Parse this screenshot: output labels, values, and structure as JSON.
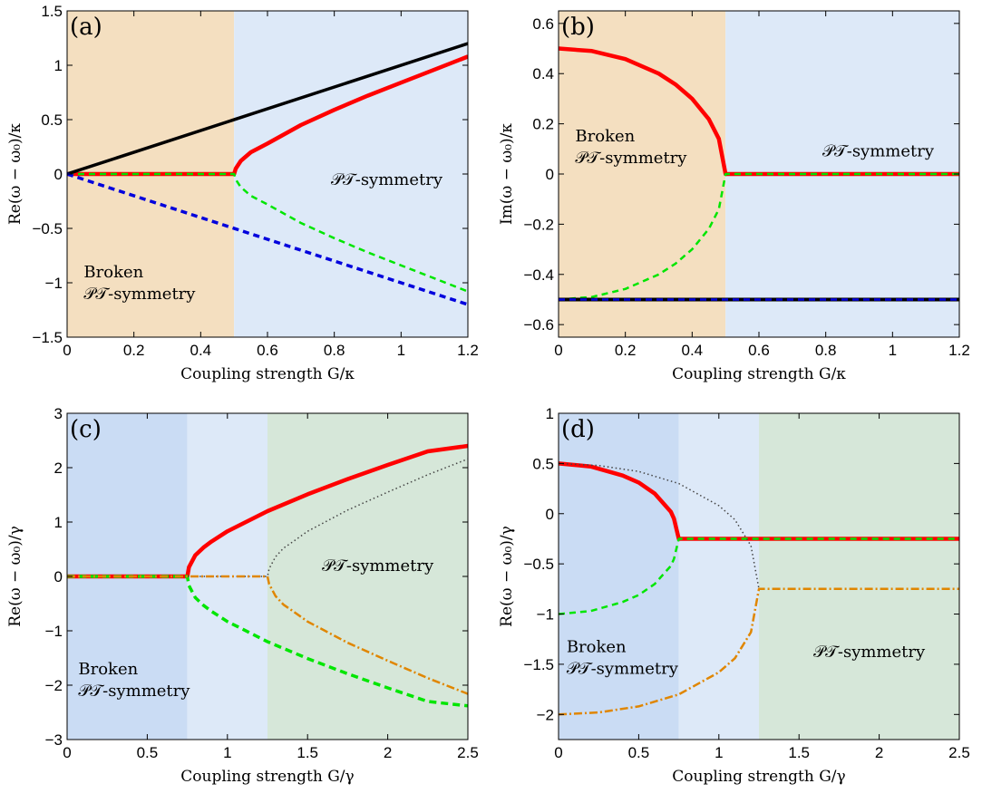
{
  "colors": {
    "tan": "#f4dfc0",
    "lightblue": "#dde9f8",
    "midblue": "#cadcf4",
    "green": "#d6e7d9",
    "red": "#ff0000",
    "green_line": "#00e600",
    "blue_line": "#0000dd",
    "black": "#000000",
    "orange": "#e08600",
    "dotted": "#444444"
  },
  "chart_data": [
    {
      "id": "a",
      "type": "line",
      "panel_label": "(a)",
      "xlabel": "Coupling strength G/κ",
      "ylabel": "Re(ω − ω₀)/κ",
      "xlim": [
        0,
        1.2
      ],
      "ylim": [
        -1.5,
        1.5
      ],
      "xticks": [
        0,
        0.2,
        0.4,
        0.6,
        0.8,
        1,
        1.2
      ],
      "xtick_labels": [
        "0",
        "0.2",
        "0.4",
        "0.6",
        "0.8",
        "1",
        "1.2"
      ],
      "yticks": [
        -1.5,
        -1,
        -0.5,
        0,
        0.5,
        1,
        1.5
      ],
      "ytick_labels": [
        "−1.5",
        "−1",
        "−0.5",
        "0",
        "0.5",
        "1",
        "1.5"
      ],
      "regions": [
        {
          "x0": 0,
          "x1": 0.5,
          "color": "tan"
        },
        {
          "x0": 0.5,
          "x1": 1.2,
          "color": "lightblue"
        }
      ],
      "annotations": [
        {
          "lines": [
            "Broken",
            "𝒫𝒯-symmetry"
          ],
          "x": 0.05,
          "y": -0.95
        },
        {
          "lines": [
            "𝒫𝒯-symmetry"
          ],
          "x": 0.79,
          "y": -0.1
        }
      ],
      "series": [
        {
          "x": [
            0,
            0.5,
            0.505,
            0.52,
            0.55,
            0.6,
            0.7,
            0.8,
            0.9,
            1.0,
            1.1,
            1.2
          ],
          "y": [
            0,
            0,
            0.05,
            0.12,
            0.2,
            0.28,
            0.45,
            0.59,
            0.72,
            0.84,
            0.96,
            1.08
          ],
          "color": "red",
          "width": 4.5,
          "dash": ""
        },
        {
          "x": [
            0,
            0.5,
            0.505,
            0.52,
            0.55,
            0.6,
            0.7,
            0.8,
            0.9,
            1.0,
            1.1,
            1.2
          ],
          "y": [
            0,
            0,
            -0.05,
            -0.12,
            -0.2,
            -0.28,
            -0.45,
            -0.59,
            -0.72,
            -0.84,
            -0.96,
            -1.08
          ],
          "color": "green_line",
          "width": 2.5,
          "dash": "7 5"
        },
        {
          "x": [
            0,
            1.2
          ],
          "y": [
            0,
            1.2
          ],
          "color": "black",
          "width": 3.5,
          "dash": ""
        },
        {
          "x": [
            0,
            1.2
          ],
          "y": [
            0,
            -1.2
          ],
          "color": "blue_line",
          "width": 3.5,
          "dash": "7 5"
        }
      ]
    },
    {
      "id": "b",
      "type": "line",
      "panel_label": "(b)",
      "xlabel": "Coupling strength G/κ",
      "ylabel": "Im(ω − ω₀)/κ",
      "xlim": [
        0,
        1.2
      ],
      "ylim": [
        -0.65,
        0.65
      ],
      "xticks": [
        0,
        0.2,
        0.4,
        0.6,
        0.8,
        1,
        1.2
      ],
      "xtick_labels": [
        "0",
        "0.2",
        "0.4",
        "0.6",
        "0.8",
        "1",
        "1.2"
      ],
      "yticks": [
        -0.6,
        -0.4,
        -0.2,
        0,
        0.2,
        0.4,
        0.6
      ],
      "ytick_labels": [
        "−0.6",
        "−0.4",
        "−0.2",
        "0",
        "0.2",
        "0.4",
        "0.6"
      ],
      "regions": [
        {
          "x0": 0,
          "x1": 0.5,
          "color": "tan"
        },
        {
          "x0": 0.5,
          "x1": 1.2,
          "color": "lightblue"
        }
      ],
      "annotations": [
        {
          "lines": [
            "Broken",
            "𝒫𝒯-symmetry"
          ],
          "x": 0.05,
          "y": 0.13
        },
        {
          "lines": [
            "𝒫𝒯-symmetry"
          ],
          "x": 0.79,
          "y": 0.07
        }
      ],
      "series": [
        {
          "x": [
            0,
            0.1,
            0.2,
            0.3,
            0.35,
            0.4,
            0.45,
            0.48,
            0.5,
            1.2
          ],
          "y": [
            0.5,
            0.49,
            0.458,
            0.4,
            0.357,
            0.3,
            0.218,
            0.14,
            0,
            0
          ],
          "color": "red",
          "width": 4.5,
          "dash": ""
        },
        {
          "x": [
            0,
            0.1,
            0.2,
            0.3,
            0.35,
            0.4,
            0.45,
            0.48,
            0.5,
            1.2
          ],
          "y": [
            -0.5,
            -0.49,
            -0.458,
            -0.4,
            -0.357,
            -0.3,
            -0.218,
            -0.14,
            0,
            0
          ],
          "color": "green_line",
          "width": 2.5,
          "dash": "7 5"
        },
        {
          "x": [
            0,
            1.2
          ],
          "y": [
            -0.5,
            -0.5
          ],
          "color": "black",
          "width": 4,
          "dash": ""
        },
        {
          "x": [
            0,
            1.2
          ],
          "y": [
            -0.5,
            -0.5
          ],
          "color": "blue_line",
          "width": 2.5,
          "dash": "7 5"
        }
      ]
    },
    {
      "id": "c",
      "type": "line",
      "panel_label": "(c)",
      "xlabel": "Coupling strength G/γ",
      "ylabel": "Re(ω − ω₀)/γ",
      "xlim": [
        0,
        2.5
      ],
      "ylim": [
        -3,
        3
      ],
      "xticks": [
        0,
        0.5,
        1,
        1.5,
        2,
        2.5
      ],
      "xtick_labels": [
        "0",
        "0.5",
        "1",
        "1.5",
        "2",
        "2.5"
      ],
      "yticks": [
        -3,
        -2,
        -1,
        0,
        1,
        2,
        3
      ],
      "ytick_labels": [
        "−3",
        "−2",
        "−1",
        "0",
        "1",
        "2",
        "3"
      ],
      "regions": [
        {
          "x0": 0,
          "x1": 0.75,
          "color": "midblue"
        },
        {
          "x0": 0.75,
          "x1": 1.25,
          "color": "lightblue"
        },
        {
          "x0": 1.25,
          "x1": 2.5,
          "color": "green"
        }
      ],
      "annotations": [
        {
          "lines": [
            "Broken",
            "𝒫𝒯-symmetry"
          ],
          "x": 0.07,
          "y": -1.8
        },
        {
          "lines": [
            "𝒫𝒯-symmetry"
          ],
          "x": 1.59,
          "y": 0.1
        }
      ],
      "series": [
        {
          "x": [
            0,
            0.75,
            0.76,
            0.8,
            0.85,
            0.9,
            1.0,
            1.25,
            1.5,
            1.75,
            2.0,
            2.25,
            2.5
          ],
          "y": [
            0,
            0,
            0.17,
            0.39,
            0.53,
            0.64,
            0.83,
            1.2,
            1.51,
            1.79,
            2.05,
            2.3,
            2.4
          ],
          "color": "red",
          "width": 4.5,
          "dash": ""
        },
        {
          "x": [
            0,
            0.75,
            0.76,
            0.8,
            0.85,
            0.9,
            1.0,
            1.25,
            1.5,
            1.75,
            2.0,
            2.25,
            2.5
          ],
          "y": [
            0,
            0,
            -0.17,
            -0.39,
            -0.53,
            -0.64,
            -0.83,
            -1.2,
            -1.51,
            -1.79,
            -2.05,
            -2.3,
            -2.38
          ],
          "color": "green_line",
          "width": 3.5,
          "dash": "8 5"
        },
        {
          "x": [
            0.75,
            1.25,
            1.26,
            1.3,
            1.35,
            1.4,
            1.5,
            1.75,
            2.0,
            2.25,
            2.5
          ],
          "y": [
            0,
            0,
            0.14,
            0.36,
            0.52,
            0.62,
            0.83,
            1.22,
            1.55,
            1.87,
            2.16
          ],
          "color": "dotted",
          "width": 1.5,
          "dash": "1.5 3"
        },
        {
          "x": [
            0,
            1.25,
            1.26,
            1.3,
            1.35,
            1.4,
            1.5,
            1.75,
            2.0,
            2.25,
            2.5
          ],
          "y": [
            0,
            0,
            -0.14,
            -0.36,
            -0.52,
            -0.62,
            -0.83,
            -1.22,
            -1.55,
            -1.87,
            -2.16
          ],
          "color": "orange",
          "width": 2.5,
          "dash": "9 3 2 3"
        }
      ]
    },
    {
      "id": "d",
      "type": "line",
      "panel_label": "(d)",
      "xlabel": "Coupling strength G/γ",
      "ylabel": "Re(ω − ω₀)/γ",
      "xlim": [
        0,
        2.5
      ],
      "ylim": [
        -2.25,
        1
      ],
      "xticks": [
        0,
        0.5,
        1,
        1.5,
        2,
        2.5
      ],
      "xtick_labels": [
        "0",
        "0.5",
        "1",
        "1.5",
        "2",
        "2.5"
      ],
      "yticks": [
        -2,
        -1.5,
        -1,
        -0.5,
        0,
        0.5,
        1
      ],
      "ytick_labels": [
        "−2",
        "−1.5",
        "−1",
        "−0.5",
        "0",
        "0.5",
        "1"
      ],
      "regions": [
        {
          "x0": 0,
          "x1": 0.75,
          "color": "midblue"
        },
        {
          "x0": 0.75,
          "x1": 1.25,
          "color": "lightblue"
        },
        {
          "x0": 1.25,
          "x1": 2.5,
          "color": "green"
        }
      ],
      "annotations": [
        {
          "lines": [
            "Broken",
            "𝒫𝒯-symmetry"
          ],
          "x": 0.05,
          "y": -1.38
        },
        {
          "lines": [
            "𝒫𝒯-symmetry"
          ],
          "x": 1.59,
          "y": -1.43
        }
      ],
      "series": [
        {
          "x": [
            0,
            0.2,
            0.4,
            0.5,
            0.6,
            0.7,
            0.72,
            0.75,
            2.5
          ],
          "y": [
            0.5,
            0.47,
            0.38,
            0.31,
            0.2,
            0.02,
            -0.05,
            -0.25,
            -0.25
          ],
          "color": "red",
          "width": 4.5,
          "dash": ""
        },
        {
          "x": [
            0,
            0.2,
            0.4,
            0.5,
            0.6,
            0.7,
            0.72,
            0.75,
            2.5
          ],
          "y": [
            -1.0,
            -0.97,
            -0.88,
            -0.81,
            -0.7,
            -0.52,
            -0.45,
            -0.25,
            -0.25
          ],
          "color": "green_line",
          "width": 2.5,
          "dash": "7 5"
        },
        {
          "x": [
            0,
            0.25,
            0.5,
            0.75,
            1.0,
            1.1,
            1.2,
            1.25
          ],
          "y": [
            0.5,
            0.48,
            0.42,
            0.3,
            0.08,
            -0.06,
            -0.32,
            -0.75
          ],
          "color": "dotted",
          "width": 1.5,
          "dash": "1.5 3"
        },
        {
          "x": [
            0,
            0.25,
            0.5,
            0.75,
            1.0,
            1.1,
            1.2,
            1.25,
            2.5
          ],
          "y": [
            -2.0,
            -1.98,
            -1.92,
            -1.8,
            -1.58,
            -1.44,
            -1.18,
            -0.75,
            -0.75
          ],
          "color": "orange",
          "width": 2.5,
          "dash": "9 3 2 3"
        }
      ]
    }
  ]
}
